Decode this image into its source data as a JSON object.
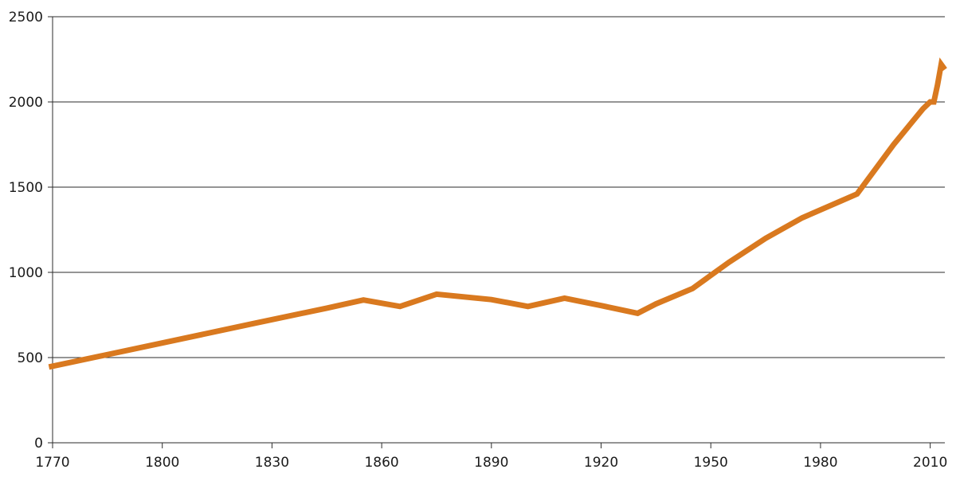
{
  "chart_data": {
    "type": "line",
    "title": "",
    "xlabel": "",
    "ylabel": "",
    "xlim": [
      1770,
      2014
    ],
    "ylim": [
      0,
      2500
    ],
    "grid": {
      "horizontal": true,
      "vertical": false
    },
    "legend": "none",
    "x_ticks": [
      1770,
      1800,
      1830,
      1860,
      1890,
      1920,
      1950,
      1980,
      2010
    ],
    "x_tick_labels": [
      "1770",
      "1800",
      "1830",
      "1860",
      "1890",
      "1920",
      "1950",
      "1980",
      "2010"
    ],
    "y_ticks": [
      0,
      500,
      1000,
      1500,
      2000,
      2500
    ],
    "y_tick_labels": [
      "0",
      "500",
      "1000",
      "1500",
      "2000",
      "2500"
    ],
    "series": [
      {
        "color": "#d9791f",
        "x": [
          1769,
          1801,
          1825,
          1845,
          1855,
          1865,
          1875,
          1890,
          1900,
          1910,
          1920,
          1930,
          1935,
          1945,
          1955,
          1965,
          1975,
          1990,
          2000,
          2008,
          2010,
          2011,
          2012,
          2013,
          2014
        ],
        "y": [
          445,
          590,
          700,
          790,
          838,
          800,
          872,
          840,
          800,
          848,
          805,
          760,
          815,
          905,
          1060,
          1200,
          1320,
          1460,
          1750,
          1960,
          2000,
          2000,
          2100,
          2220,
          2190
        ]
      }
    ]
  }
}
